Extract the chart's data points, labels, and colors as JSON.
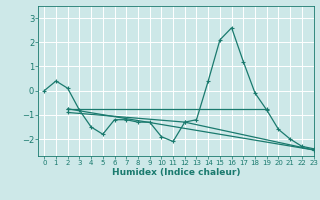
{
  "title": "",
  "xlabel": "Humidex (Indice chaleur)",
  "ylabel": "",
  "bg_color": "#cde8e8",
  "line_color": "#1a7a6e",
  "grid_color": "#ffffff",
  "xlim": [
    -0.5,
    23
  ],
  "ylim": [
    -2.7,
    3.5
  ],
  "yticks": [
    -2,
    -1,
    0,
    1,
    2,
    3
  ],
  "xticks": [
    0,
    1,
    2,
    3,
    4,
    5,
    6,
    7,
    8,
    9,
    10,
    11,
    12,
    13,
    14,
    15,
    16,
    17,
    18,
    19,
    20,
    21,
    22,
    23
  ],
  "lines": [
    {
      "x": [
        0,
        1,
        2,
        3,
        4,
        5,
        6,
        7,
        8,
        9,
        10,
        11,
        12,
        13,
        14,
        15,
        16,
        17,
        18,
        19,
        20,
        21,
        22,
        23
      ],
      "y": [
        0.0,
        0.4,
        0.1,
        -0.8,
        -1.5,
        -1.8,
        -1.2,
        -1.2,
        -1.3,
        -1.3,
        -1.9,
        -2.1,
        -1.3,
        -1.2,
        0.4,
        2.1,
        2.6,
        1.2,
        -0.1,
        -0.8,
        -1.6,
        -2.0,
        -2.3,
        -2.4
      ]
    },
    {
      "x": [
        2,
        19
      ],
      "y": [
        -0.75,
        -0.75
      ]
    },
    {
      "x": [
        2,
        23
      ],
      "y": [
        -0.75,
        -2.45
      ]
    },
    {
      "x": [
        2,
        12,
        23
      ],
      "y": [
        -0.9,
        -1.3,
        -2.45
      ]
    }
  ]
}
